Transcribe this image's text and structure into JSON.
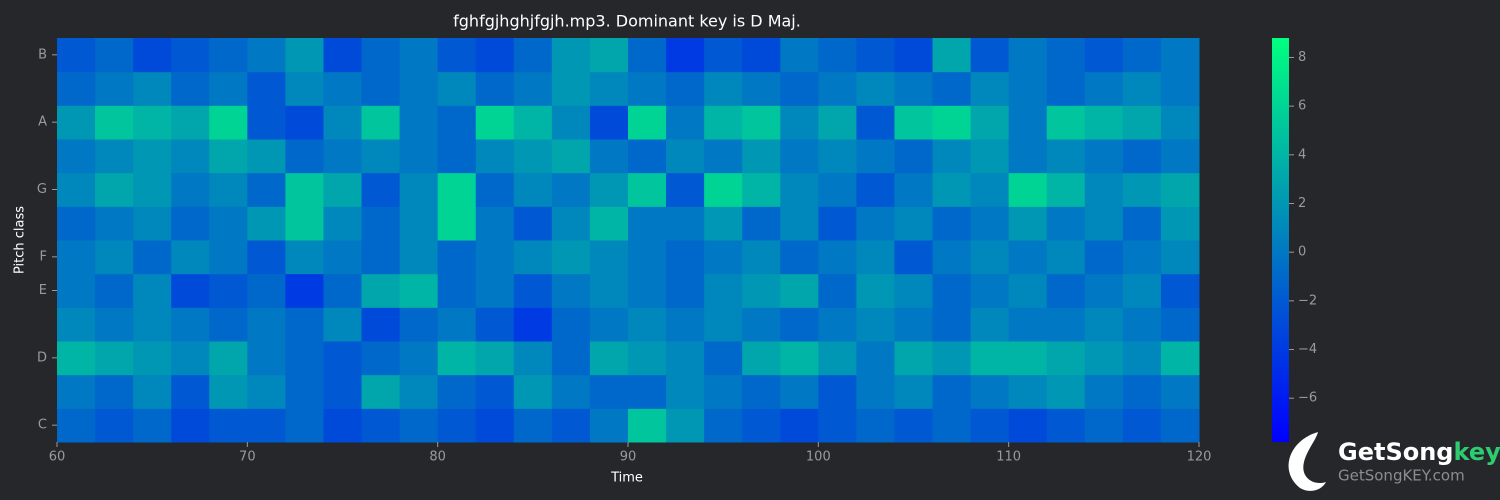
{
  "chart_data": {
    "type": "heatmap",
    "title": "fghfgjhghjfgjh.mp3. Dominant key is D Maj.",
    "x_label": "Time",
    "y_label": "Pitch class",
    "xlim": [
      60,
      120
    ],
    "xticks": [
      60,
      70,
      80,
      90,
      100,
      110,
      120
    ],
    "x_edges": [
      60,
      62,
      64,
      66,
      68,
      70,
      72,
      74,
      76,
      78,
      80,
      82,
      84,
      86,
      88,
      90,
      92,
      94,
      96,
      98,
      100,
      102,
      104,
      106,
      108,
      110,
      112,
      114,
      116,
      118,
      120
    ],
    "categories": [
      "C",
      null,
      "D",
      null,
      "E",
      "F",
      null,
      "G",
      null,
      "A",
      null,
      "B"
    ],
    "z": [
      [
        -1,
        -2,
        -1,
        -3,
        -2,
        -2,
        -1,
        -3,
        -2,
        -1,
        -2,
        -3,
        -1,
        -2,
        0,
        5,
        2,
        -1,
        -2,
        -3,
        -2,
        -1,
        -2,
        -1,
        -2,
        -3,
        -2,
        -1,
        -2,
        -1
      ],
      [
        0,
        -1,
        1,
        -2,
        2,
        1,
        -1,
        -2,
        3,
        1,
        -1,
        -2,
        2,
        0,
        -1,
        -1,
        1,
        0,
        -1,
        0,
        -2,
        0,
        1,
        -1,
        0,
        1,
        2,
        0,
        -1,
        0
      ],
      [
        4,
        3,
        2,
        1,
        3,
        0,
        -1,
        -2,
        -1,
        0,
        4,
        3,
        1,
        -1,
        3,
        2,
        1,
        -1,
        3,
        4,
        2,
        0,
        3,
        2,
        4,
        4,
        3,
        2,
        1,
        4
      ],
      [
        1,
        0,
        1,
        0,
        -1,
        0,
        -1,
        1,
        -3,
        -1,
        0,
        -2,
        -4,
        -1,
        0,
        1,
        0,
        1,
        0,
        -1,
        0,
        1,
        0,
        -1,
        1,
        0,
        0,
        1,
        0,
        -1
      ],
      [
        0,
        -1,
        1,
        -3,
        -2,
        -1,
        -4,
        -1,
        3,
        4,
        -1,
        0,
        -2,
        0,
        1,
        0,
        -1,
        1,
        2,
        3,
        -1,
        2,
        1,
        -1,
        0,
        1,
        -1,
        0,
        1,
        -2
      ],
      [
        0,
        1,
        -1,
        1,
        0,
        -2,
        1,
        0,
        -1,
        1,
        -1,
        0,
        1,
        2,
        1,
        0,
        -1,
        0,
        1,
        -1,
        0,
        1,
        -2,
        0,
        1,
        0,
        1,
        -1,
        0,
        1
      ],
      [
        -1,
        0,
        1,
        -1,
        0,
        2,
        5,
        1,
        -1,
        1,
        6,
        0,
        -2,
        1,
        4,
        0,
        0,
        2,
        -1,
        1,
        -2,
        0,
        1,
        -1,
        0,
        2,
        0,
        1,
        -1,
        2
      ],
      [
        1,
        3,
        2,
        0,
        1,
        -1,
        5,
        3,
        -2,
        1,
        6,
        -1,
        1,
        0,
        2,
        5,
        -2,
        6,
        4,
        1,
        0,
        -2,
        0,
        2,
        1,
        6,
        4,
        1,
        2,
        3
      ],
      [
        0,
        1,
        2,
        1,
        3,
        2,
        -1,
        0,
        1,
        0,
        -1,
        1,
        2,
        3,
        0,
        -1,
        1,
        0,
        2,
        0,
        1,
        0,
        -1,
        1,
        2,
        0,
        1,
        0,
        -1,
        0
      ],
      [
        2,
        5,
        4,
        3,
        6,
        -2,
        -3,
        1,
        5,
        0,
        -1,
        6,
        4,
        1,
        -3,
        6,
        0,
        4,
        5,
        1,
        3,
        -2,
        5,
        6,
        3,
        0,
        5,
        4,
        3,
        1
      ],
      [
        -1,
        0,
        1,
        -1,
        0,
        -2,
        1,
        0,
        -1,
        0,
        1,
        -1,
        0,
        2,
        1,
        0,
        -1,
        1,
        0,
        -1,
        0,
        1,
        0,
        -1,
        1,
        0,
        -1,
        0,
        1,
        0
      ],
      [
        -2,
        -1,
        -3,
        -2,
        -1,
        0,
        2,
        -3,
        -1,
        0,
        -2,
        -3,
        -1,
        2,
        3,
        -1,
        -4,
        -2,
        -3,
        0,
        -1,
        -2,
        -3,
        3,
        -2,
        0,
        -1,
        -2,
        -1,
        0
      ]
    ],
    "colormap": [
      "#0000ff",
      "#00ff80"
    ],
    "clim": [
      -7.8,
      8.8
    ],
    "cticks": [
      {
        "value": -6,
        "label": "−6"
      },
      {
        "value": -4,
        "label": "−4"
      },
      {
        "value": -2,
        "label": "−2"
      },
      0,
      2,
      4,
      6,
      8
    ],
    "watermark": {
      "brand": "GetSong",
      "brand_accent": "key",
      "url": "GetSongKEY.com"
    }
  }
}
